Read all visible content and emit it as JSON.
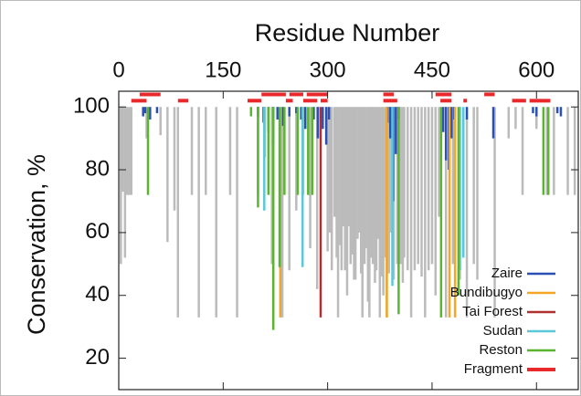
{
  "chart_data": {
    "type": "drop-lines",
    "xlabel": "Residue Number",
    "ylabel": "Conservation, %",
    "xlim": [
      0,
      660
    ],
    "xticks": [
      0,
      150,
      300,
      450,
      600
    ],
    "ylim": [
      10,
      105
    ],
    "yticks": [
      20,
      40,
      60,
      80,
      100
    ],
    "legend": "lower right",
    "series": [
      {
        "color": "#bbbbbb",
        "x": [
          3,
          6,
          9,
          12,
          15,
          18,
          40,
          60,
          70,
          80,
          85,
          105,
          115,
          125,
          140,
          160,
          170,
          200,
          210,
          220,
          235,
          245,
          255,
          265,
          275,
          285,
          300,
          303,
          306,
          310,
          313,
          315,
          318,
          320,
          323,
          325,
          328,
          330,
          333,
          335,
          338,
          340,
          343,
          345,
          348,
          350,
          353,
          355,
          358,
          360,
          363,
          365,
          368,
          370,
          373,
          375,
          378,
          380,
          383,
          385,
          388,
          390,
          395,
          400,
          405,
          408,
          410,
          415,
          420,
          425,
          430,
          435,
          440,
          445,
          450,
          455,
          460,
          470,
          480,
          490,
          500,
          510,
          515,
          540,
          560,
          570,
          580,
          600,
          615,
          625,
          645,
          655
        ],
        "values": [
          50,
          73,
          52,
          72,
          72,
          72,
          90,
          91,
          57,
          67,
          33,
          72,
          33,
          72,
          33,
          72,
          33,
          72,
          84,
          50,
          33,
          48,
          67,
          72,
          55,
          42,
          54,
          60,
          48,
          65,
          52,
          33,
          56,
          48,
          62,
          48,
          40,
          62,
          50,
          53,
          45,
          45,
          58,
          60,
          47,
          33,
          50,
          55,
          38,
          33,
          52,
          50,
          44,
          48,
          58,
          33,
          46,
          40,
          52,
          33,
          47,
          60,
          45,
          50,
          50,
          44,
          52,
          48,
          33,
          48,
          50,
          46,
          33,
          48,
          50,
          40,
          65,
          33,
          50,
          45,
          33,
          50,
          45,
          33,
          90,
          93,
          72,
          93,
          72,
          72,
          72,
          72
        ]
      },
      {
        "name": "Zaire",
        "color": "#2a4fb5",
        "x": [
          35,
          38,
          45,
          55,
          200,
          208,
          215,
          222,
          228,
          236,
          245,
          255,
          262,
          268,
          280,
          286,
          293,
          298,
          302,
          386,
          390,
          394,
          398,
          402,
          466,
          470,
          474,
          478,
          482,
          500,
          538,
          595,
          600,
          630,
          635
        ],
        "values": [
          97,
          98,
          96,
          98,
          97,
          95,
          92,
          88,
          96,
          94,
          97,
          98,
          96,
          93,
          96,
          90,
          93,
          88,
          96,
          95,
          90,
          70,
          85,
          96,
          92,
          83,
          80,
          90,
          96,
          96,
          90,
          98,
          97,
          98,
          97
        ]
      },
      {
        "name": "Bundibugyo",
        "color": "#f5a623",
        "x": [
          232,
          385,
          475,
          483
        ],
        "values": [
          33,
          33,
          33,
          33
        ]
      },
      {
        "name": "Tai Forest",
        "color": "#b03030",
        "x": [
          290
        ],
        "values": [
          33
        ]
      },
      {
        "name": "Sudan",
        "color": "#5ac8d8",
        "x": [
          209,
          264,
          393,
          490,
          495
        ],
        "values": [
          67,
          49,
          43,
          48,
          52
        ]
      },
      {
        "name": "Reston",
        "color": "#5ab52e",
        "x": [
          42,
          190,
          200,
          215,
          222,
          231,
          238,
          257,
          272,
          278,
          402,
          463,
          488,
          610,
          617
        ],
        "values": [
          72,
          97,
          68,
          72,
          29,
          49,
          72,
          72,
          72,
          72,
          34,
          33,
          40,
          72,
          72
        ]
      },
      {
        "name": "Fragment",
        "color": "#e8282a",
        "fragment": true,
        "x": [
          18,
          30,
          85,
          185,
          205,
          240,
          245,
          265,
          270,
          290,
          380,
          380,
          455,
          462,
          495,
          525,
          565,
          590
        ],
        "x2": [
          40,
          60,
          100,
          205,
          240,
          250,
          265,
          285,
          300,
          300,
          400,
          395,
          478,
          478,
          500,
          540,
          585,
          620
        ],
        "values": [
          102,
          104,
          102,
          102,
          104,
          102,
          104,
          102,
          104,
          102,
          102,
          104,
          104,
          102,
          102,
          104,
          102,
          102
        ]
      }
    ]
  }
}
